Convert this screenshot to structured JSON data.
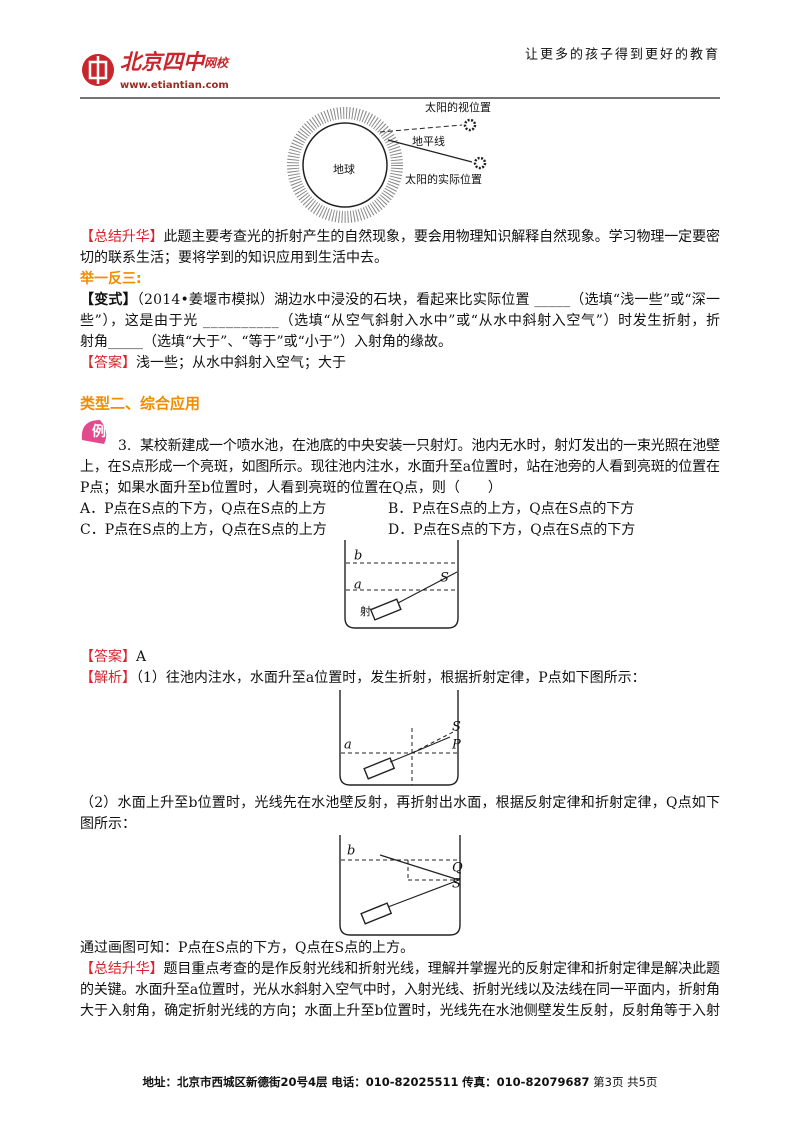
{
  "header": {
    "logo": "北京四中",
    "logo_suffix": "网校",
    "url": "www.etiantian.com",
    "slogan": "让更多的孩子得到更好的教育"
  },
  "figure1": {
    "labels": [
      "太阳的视位置",
      "地平线",
      "地球",
      "太阳的实际位置"
    ]
  },
  "summary1": {
    "label": "【总结升华】",
    "lines": [
      "此题主要考查光的折射产生的自然现象，要会用物理知识解释自然现象。学习物理一定要密",
      "切的联系生活；要将学到的知识应用到生活中去。"
    ]
  },
  "practice": {
    "title": "举一反三:",
    "label": "【变式】",
    "lines": [
      "（2014•姜堰市模拟）湖边水中浸没的石块，看起来比实际位置 _____（选填“浅一些”或“深一",
      "些”），这是由于光 __________（选填“从空气斜射入水中”或“从水中斜射入空气”）时发生折射，折",
      "射角_____（选填“大于”、“等于”或“小于”）入射角的缘故。"
    ],
    "answer_label": "【答案】",
    "answer": "浅一些；从水中斜射入空气；大于"
  },
  "section_title": "类型二、综合应用",
  "example": {
    "icon": "例",
    "number": "3.",
    "lines": [
      "某校新建成一个喷水池，在池底的中央安装一只射灯。池内无水时，射灯发出的一束光照在池壁",
      "上，在S点形成一个亮斑，如图所示。现往池内注水，水面升至a位置时，站在池旁的人看到亮斑的位置在",
      "P点；如果水面升至b位置时，人看到亮斑的位置在Q点，则（　　）"
    ],
    "options": [
      "A．P点在S点的下方，Q点在S点的上方",
      "B．P点在S点的上方，Q点在S点的下方",
      "C．P点在S点的上方，Q点在S点的上方",
      "D．P点在S点的下方，Q点在S点的下方"
    ]
  },
  "figure2": {
    "labels": [
      "b",
      "a",
      "S",
      "射"
    ]
  },
  "answer": {
    "label": "【答案】",
    "text": "A"
  },
  "analysis": {
    "label": "【解析】",
    "lines": [
      "（1）往池内注水，水面升至a位置时，发生折射，根据折射定律，P点如下图所示："
    ]
  },
  "figure3": {
    "labels": [
      "S",
      "a",
      "P"
    ]
  },
  "analysis2": {
    "lines": [
      "（2）水面上升至b位置时，光线先在水池壁反射，再折射出水面，根据反射定律和折射定律，Q点如下",
      "图所示："
    ]
  },
  "figure4": {
    "labels": [
      "b",
      "Q",
      "S"
    ]
  },
  "conclusion": {
    "lines": [
      "通过画图可知：P点在S点的下方，Q点在S点的上方。"
    ]
  },
  "summary2": {
    "label": "【总结升华】",
    "lines": [
      "题目重点考查的是作反射光线和折射光线，理解并掌握光的反射定律和折射定律是解决此题",
      "的关键。水面升至a位置时，光从水斜射入空气中时，入射光线、折射光线以及法线在同一平面内，折射角",
      "大于入射角，确定折射光线的方向；水面上升至b位置时，光线先在水池侧壁发生反射，反射角等于入射"
    ]
  },
  "footer": {
    "address": "地址：北京市西城区新德街20号4层",
    "phone": "电话：010-82025511",
    "fax": "传真：010-82079687",
    "page": "第3页",
    "total": "共5页"
  }
}
